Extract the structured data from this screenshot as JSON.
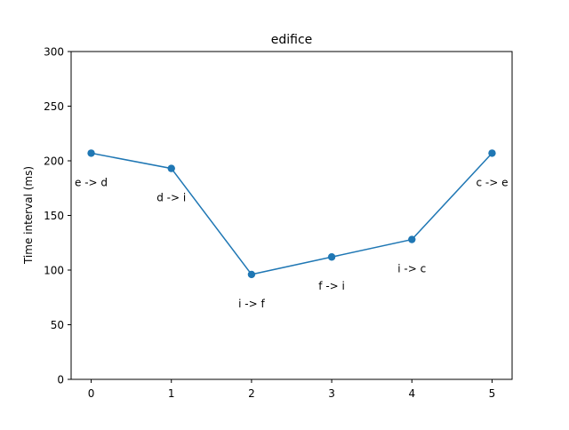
{
  "chart_data": {
    "type": "line",
    "title": "edifice",
    "xlabel": "",
    "ylabel": "Time interval (ms)",
    "x": [
      0,
      1,
      2,
      3,
      4,
      5
    ],
    "series": [
      {
        "values": [
          207,
          193,
          96,
          112,
          128,
          207
        ],
        "point_labels": [
          "e -> d",
          "d -> i",
          "i -> f",
          "f -> i",
          "i -> c",
          "c -> e"
        ]
      }
    ],
    "xlim": [
      -0.25,
      5.25
    ],
    "ylim": [
      0,
      300
    ],
    "xticks": [
      0,
      1,
      2,
      3,
      4,
      5
    ],
    "yticks": [
      0,
      50,
      100,
      150,
      200,
      250,
      300
    ],
    "grid": false,
    "markers": "circle",
    "colors": {
      "line": "#1f77b4",
      "axes": "#000000",
      "background": "#ffffff"
    }
  }
}
